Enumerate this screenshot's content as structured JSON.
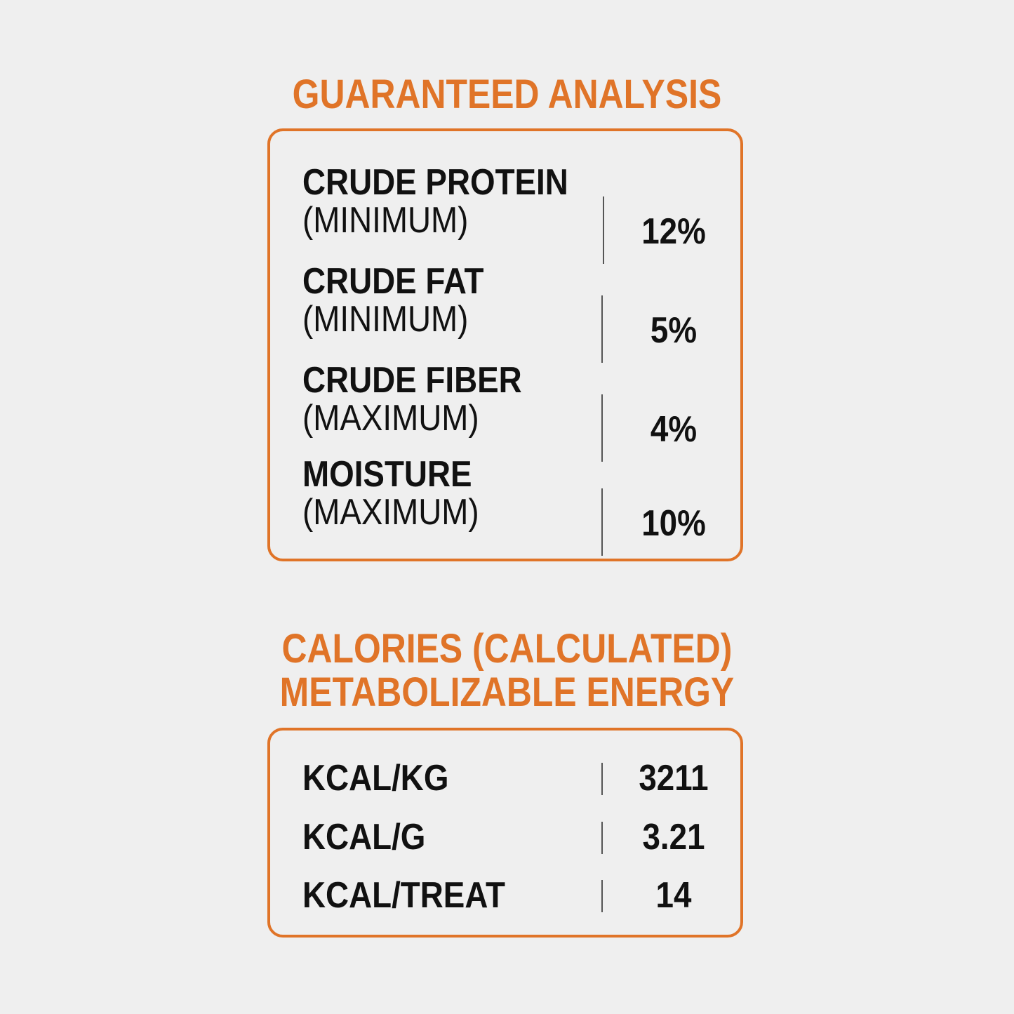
{
  "guaranteed_analysis": {
    "title": "GUARANTEED ANALYSIS",
    "rows": [
      {
        "name": "CRUDE PROTEIN",
        "qualifier": "(MINIMUM)",
        "value": "12%"
      },
      {
        "name": "CRUDE FAT",
        "qualifier": "(MINIMUM)",
        "value": "5%"
      },
      {
        "name": "CRUDE FIBER",
        "qualifier": "(MAXIMUM)",
        "value": "4%"
      },
      {
        "name": "MOISTURE",
        "qualifier": "(MAXIMUM)",
        "value": "10%"
      }
    ]
  },
  "calories": {
    "title_line1": "CALORIES (CALCULATED)",
    "title_line2": "METABOLIZABLE ENERGY",
    "rows": [
      {
        "name": "KCAL/KG",
        "value": "3211"
      },
      {
        "name": "KCAL/G",
        "value": "3.21"
      },
      {
        "name": "KCAL/TREAT",
        "value": "14"
      }
    ]
  },
  "colors": {
    "accent": "#e07428",
    "background": "#efefef",
    "text": "#111111"
  }
}
